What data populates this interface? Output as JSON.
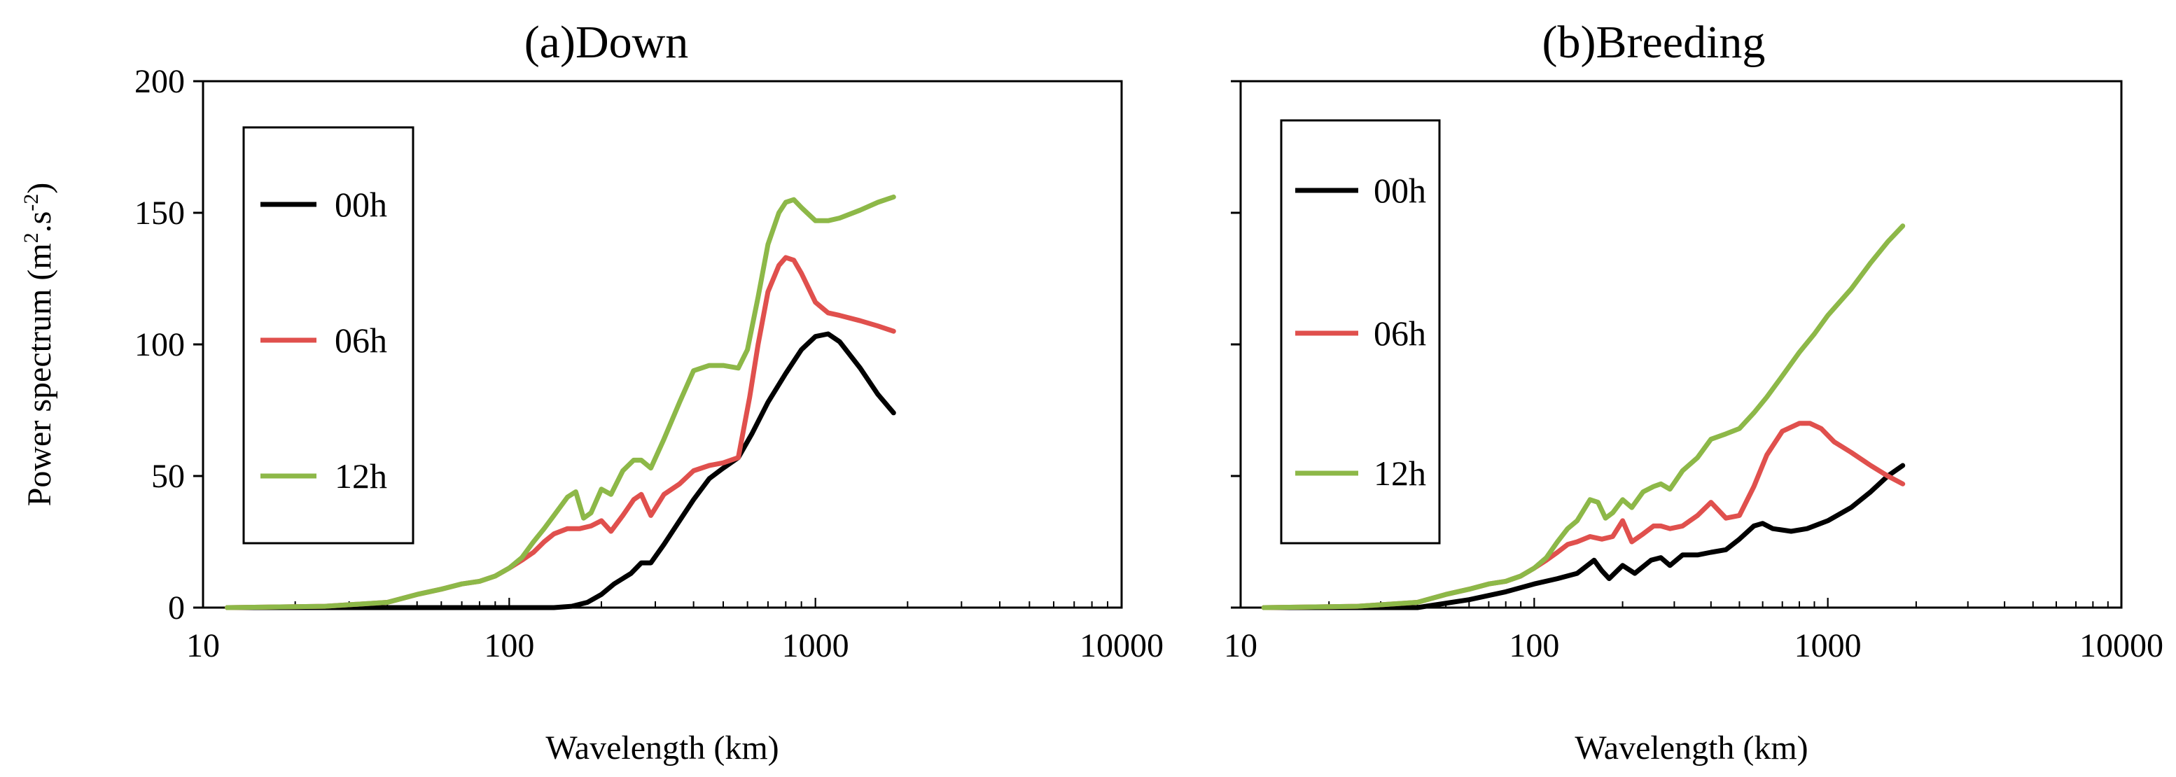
{
  "chart_data": [
    {
      "type": "line",
      "title": "(a)Down",
      "xlabel": "Wavelength (km)",
      "ylabel_main": "Power spectrum (m",
      "ylabel_sup1": "2",
      "ylabel_mid": ".s",
      "ylabel_sup2": "-2",
      "ylabel_end": ")",
      "xscale": "log",
      "xlim": [
        10,
        10000
      ],
      "ylim": [
        0,
        200
      ],
      "xticks": [
        10,
        100,
        1000,
        10000
      ],
      "xtick_labels": [
        "10",
        "100",
        "1000",
        "10000"
      ],
      "yticks": [
        0,
        50,
        100,
        150,
        200
      ],
      "ytick_labels": [
        "0",
        "50",
        "100",
        "150",
        "200"
      ],
      "legend_position": "left",
      "series": [
        {
          "name": "00h",
          "color": "#000000",
          "x": [
            12,
            50,
            100,
            140,
            160,
            180,
            200,
            220,
            250,
            270,
            290,
            320,
            360,
            400,
            450,
            500,
            560,
            620,
            700,
            800,
            900,
            1000,
            1100,
            1200,
            1400,
            1600,
            1800
          ],
          "y": [
            0,
            0,
            0,
            0,
            0.5,
            2,
            5,
            9,
            13,
            17,
            17,
            24,
            33,
            41,
            49,
            53,
            57,
            66,
            78,
            89,
            98,
            103,
            104,
            101,
            91,
            81,
            74
          ]
        },
        {
          "name": "06h",
          "color": "#e0504d",
          "x": [
            12,
            25,
            40,
            50,
            60,
            70,
            80,
            90,
            100,
            110,
            120,
            130,
            140,
            155,
            170,
            185,
            200,
            215,
            235,
            255,
            270,
            290,
            320,
            360,
            400,
            450,
            500,
            560,
            610,
            650,
            700,
            760,
            800,
            850,
            900,
            1000,
            1100,
            1200,
            1400,
            1600,
            1800
          ],
          "y": [
            0,
            0.5,
            2,
            5,
            7,
            9,
            10,
            12,
            15,
            18,
            21,
            25,
            28,
            30,
            30,
            31,
            33,
            29,
            35,
            41,
            43,
            35,
            43,
            47,
            52,
            54,
            55,
            57,
            80,
            100,
            120,
            130,
            133,
            132,
            127,
            116,
            112,
            111,
            109,
            107,
            105
          ]
        },
        {
          "name": "12h",
          "color": "#8db848",
          "x": [
            12,
            25,
            40,
            50,
            60,
            70,
            80,
            90,
            100,
            110,
            120,
            130,
            140,
            155,
            165,
            175,
            185,
            200,
            215,
            235,
            255,
            270,
            290,
            320,
            360,
            400,
            450,
            500,
            560,
            600,
            650,
            700,
            760,
            800,
            850,
            900,
            1000,
            1100,
            1200,
            1400,
            1600,
            1800
          ],
          "y": [
            0,
            0.5,
            2,
            5,
            7,
            9,
            10,
            12,
            15,
            19,
            25,
            30,
            35,
            42,
            44,
            34,
            36,
            45,
            43,
            52,
            56,
            56,
            53,
            64,
            78,
            90,
            92,
            92,
            91,
            98,
            118,
            138,
            150,
            154,
            155,
            152,
            147,
            147,
            148,
            151,
            154,
            156
          ]
        }
      ]
    },
    {
      "type": "line",
      "title": "(b)Breeding",
      "xlabel": "Wavelength (km)",
      "xscale": "log",
      "xlim": [
        10,
        10000
      ],
      "ylim": [
        0,
        200
      ],
      "xticks": [
        10,
        100,
        1000,
        10000
      ],
      "xtick_labels": [
        "10",
        "100",
        "1000",
        "10000"
      ],
      "yticks": [
        0,
        50,
        100,
        150,
        200
      ],
      "legend_position": "left",
      "series": [
        {
          "name": "00h",
          "color": "#000000",
          "x": [
            12,
            40,
            60,
            80,
            100,
            120,
            140,
            160,
            170,
            180,
            200,
            220,
            250,
            270,
            290,
            320,
            360,
            400,
            450,
            500,
            560,
            600,
            650,
            750,
            850,
            1000,
            1200,
            1400,
            1600,
            1800
          ],
          "y": [
            0,
            0,
            3,
            6,
            9,
            11,
            13,
            18,
            14,
            11,
            16,
            13,
            18,
            19,
            16,
            20,
            20,
            21,
            22,
            26,
            31,
            32,
            30,
            29,
            30,
            33,
            38,
            44,
            50,
            54
          ]
        },
        {
          "name": "06h",
          "color": "#e0504d",
          "x": [
            12,
            25,
            40,
            50,
            60,
            70,
            80,
            90,
            100,
            110,
            120,
            130,
            140,
            155,
            170,
            185,
            200,
            215,
            235,
            255,
            270,
            290,
            320,
            360,
            400,
            450,
            500,
            560,
            620,
            700,
            800,
            870,
            950,
            1050,
            1200,
            1400,
            1600,
            1800
          ],
          "y": [
            0,
            0.5,
            2,
            5,
            7,
            9,
            10,
            12,
            15,
            18,
            21,
            24,
            25,
            27,
            26,
            27,
            33,
            25,
            28,
            31,
            31,
            30,
            31,
            35,
            40,
            34,
            35,
            46,
            58,
            67,
            70,
            70,
            68,
            63,
            59,
            54,
            50,
            47
          ]
        },
        {
          "name": "12h",
          "color": "#8db848",
          "x": [
            12,
            25,
            40,
            50,
            60,
            70,
            80,
            90,
            100,
            110,
            120,
            130,
            140,
            155,
            165,
            175,
            185,
            200,
            215,
            235,
            255,
            270,
            290,
            320,
            360,
            400,
            450,
            500,
            560,
            620,
            700,
            800,
            900,
            1000,
            1200,
            1400,
            1600,
            1800
          ],
          "y": [
            0,
            0.5,
            2,
            5,
            7,
            9,
            10,
            12,
            15,
            19,
            25,
            30,
            33,
            41,
            40,
            34,
            36,
            41,
            38,
            44,
            46,
            47,
            45,
            52,
            57,
            64,
            66,
            68,
            74,
            80,
            88,
            97,
            104,
            111,
            121,
            131,
            139,
            145
          ]
        }
      ]
    }
  ]
}
